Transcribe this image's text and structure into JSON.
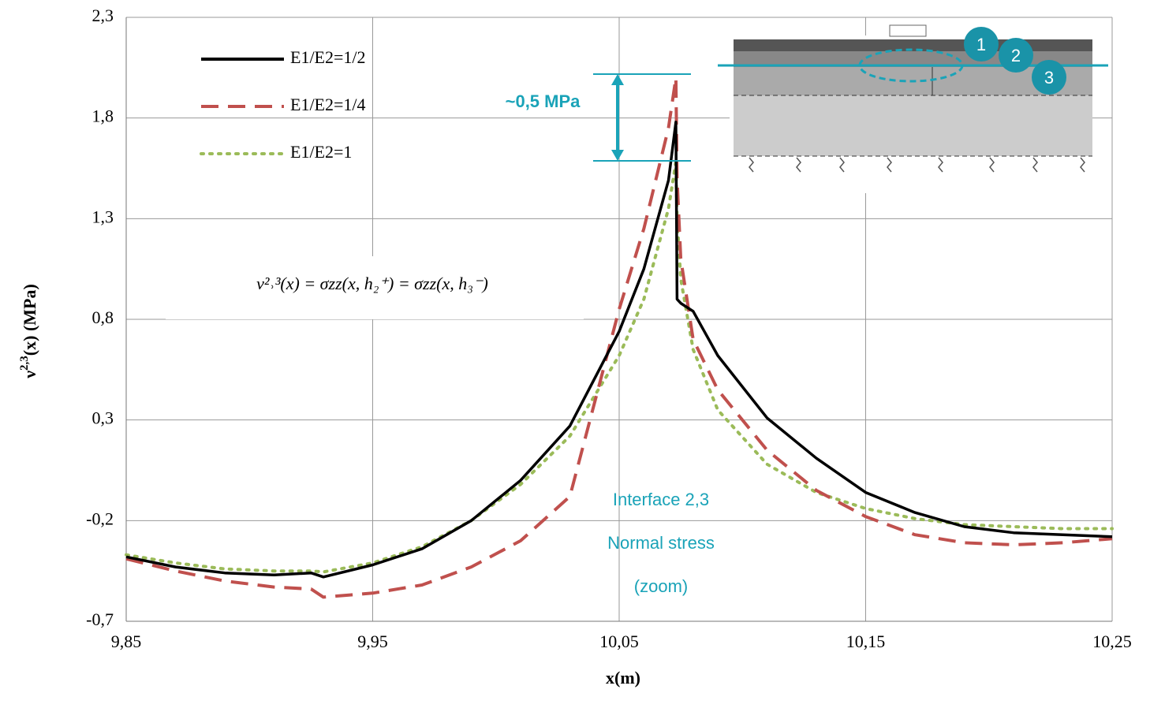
{
  "chart_data": {
    "type": "line",
    "x_label": "x(m)",
    "y_label_symbol": "ν",
    "y_label_sup": "2,3",
    "y_label_rest": "(x) (MPa)",
    "x": [
      9.85,
      9.87,
      9.89,
      9.91,
      9.925,
      9.93,
      9.95,
      9.97,
      9.99,
      10.01,
      10.03,
      10.05,
      10.06,
      10.07,
      10.073,
      10.0735,
      10.075,
      10.08,
      10.09,
      10.11,
      10.13,
      10.15,
      10.17,
      10.19,
      10.21,
      10.23,
      10.25
    ],
    "series": [
      {
        "name": "E1/E2=1/2",
        "color": "#000000",
        "dash": "solid",
        "values": [
          -0.38,
          -0.43,
          -0.46,
          -0.47,
          -0.46,
          -0.48,
          -0.42,
          -0.34,
          -0.2,
          0.0,
          0.27,
          0.74,
          1.05,
          1.49,
          1.78,
          0.9,
          0.88,
          0.84,
          0.62,
          0.31,
          0.11,
          -0.06,
          -0.16,
          -0.23,
          -0.26,
          -0.27,
          -0.28
        ]
      },
      {
        "name": "E1/E2=1/4",
        "color": "#c0504d",
        "dash": "dashed",
        "values": [
          -0.39,
          -0.45,
          -0.5,
          -0.53,
          -0.54,
          -0.58,
          -0.56,
          -0.52,
          -0.43,
          -0.3,
          -0.08,
          0.85,
          1.25,
          1.75,
          2.0,
          1.5,
          1.1,
          0.7,
          0.45,
          0.15,
          -0.05,
          -0.18,
          -0.27,
          -0.31,
          -0.32,
          -0.31,
          -0.29
        ]
      },
      {
        "name": "E1/E2=1",
        "color": "#9bbb59",
        "dash": "dotted",
        "values": [
          -0.37,
          -0.41,
          -0.44,
          -0.45,
          -0.45,
          -0.455,
          -0.41,
          -0.33,
          -0.2,
          -0.02,
          0.22,
          0.62,
          0.9,
          1.35,
          1.58,
          1.3,
          1.0,
          0.65,
          0.35,
          0.08,
          -0.06,
          -0.14,
          -0.19,
          -0.22,
          -0.23,
          -0.24,
          -0.24
        ]
      }
    ],
    "xlim": [
      9.85,
      10.25
    ],
    "xticks": [
      {
        "value": 9.85,
        "label": "9,85"
      },
      {
        "value": 9.95,
        "label": "9,95"
      },
      {
        "value": 10.05,
        "label": "10,05"
      },
      {
        "value": 10.15,
        "label": "10,15"
      },
      {
        "value": 10.25,
        "label": "10,25"
      }
    ],
    "ylim": [
      -0.7,
      2.3
    ],
    "yticks": [
      {
        "value": -0.7,
        "label": "-0,7"
      },
      {
        "value": -0.2,
        "label": "-0,2"
      },
      {
        "value": 0.3,
        "label": "0,3"
      },
      {
        "value": 0.8,
        "label": "0,8"
      },
      {
        "value": 1.3,
        "label": "1,3"
      },
      {
        "value": 1.8,
        "label": "1,8"
      },
      {
        "value": 2.3,
        "label": "2,3"
      }
    ],
    "grid": true,
    "legend": "top-left",
    "equation": "ν²˒³(x) = σzz(x, h₂⁺) = σzz(x, h₃⁻)",
    "annotations": [
      "~0,5 MPa",
      "Interface 2,3",
      "Normal stress",
      "(zoom)"
    ],
    "inset_layers": [
      "1",
      "2",
      "3"
    ]
  }
}
